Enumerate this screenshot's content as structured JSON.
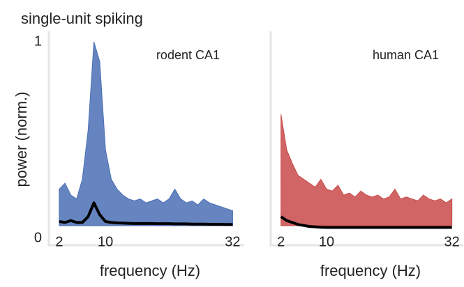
{
  "chart_data": [
    {
      "type": "line",
      "title": "single-unit spiking",
      "ylabel": "power (norm.)",
      "xlabel": "frequency (Hz)",
      "annotation": "rodent CA1",
      "x": [
        2,
        3,
        4,
        5,
        6,
        7,
        8,
        9,
        10,
        11,
        12,
        13,
        14,
        15,
        16,
        17,
        18,
        19,
        20,
        21,
        22,
        23,
        24,
        25,
        26,
        27,
        28,
        29,
        30,
        31,
        32
      ],
      "series": [
        {
          "color": "#4a6fb5",
          "fill": true,
          "values": [
            0.25,
            0.28,
            0.22,
            0.2,
            0.3,
            0.55,
            1.0,
            0.9,
            0.45,
            0.3,
            0.25,
            0.22,
            0.2,
            0.19,
            0.2,
            0.18,
            0.19,
            0.2,
            0.18,
            0.2,
            0.25,
            0.2,
            0.18,
            0.19,
            0.17,
            0.2,
            0.18,
            0.17,
            0.16,
            0.15,
            0.14
          ]
        },
        {
          "color": "#000000",
          "fill": false,
          "linewidth": 4,
          "values": [
            0.085,
            0.08,
            0.09,
            0.08,
            0.08,
            0.11,
            0.18,
            0.12,
            0.085,
            0.08,
            0.078,
            0.077,
            0.076,
            0.075,
            0.075,
            0.075,
            0.075,
            0.074,
            0.074,
            0.074,
            0.073,
            0.073,
            0.073,
            0.072,
            0.072,
            0.072,
            0.071,
            0.071,
            0.071,
            0.07,
            0.07
          ]
        }
      ],
      "xlim": [
        0.2,
        34
      ],
      "ylim": [
        0,
        1
      ],
      "xticks": [
        2,
        10,
        32
      ],
      "yticks": [
        0,
        1
      ]
    },
    {
      "type": "line",
      "xlabel": "frequency (Hz)",
      "annotation": "human CA1",
      "x": [
        2,
        3,
        4,
        5,
        6,
        7,
        8,
        9,
        10,
        11,
        12,
        13,
        14,
        15,
        16,
        17,
        18,
        19,
        20,
        21,
        22,
        23,
        24,
        25,
        26,
        27,
        28,
        29,
        30,
        31,
        32
      ],
      "series": [
        {
          "color": "#c94a4a",
          "fill": true,
          "values": [
            0.63,
            0.45,
            0.38,
            0.32,
            0.3,
            0.28,
            0.26,
            0.3,
            0.25,
            0.24,
            0.27,
            0.22,
            0.23,
            0.21,
            0.24,
            0.22,
            0.21,
            0.22,
            0.2,
            0.21,
            0.25,
            0.2,
            0.21,
            0.2,
            0.19,
            0.22,
            0.2,
            0.19,
            0.2,
            0.18,
            0.2
          ]
        },
        {
          "color": "#000000",
          "fill": false,
          "linewidth": 4,
          "values": [
            0.11,
            0.09,
            0.08,
            0.07,
            0.065,
            0.06,
            0.058,
            0.056,
            0.055,
            0.055,
            0.055,
            0.055,
            0.055,
            0.055,
            0.055,
            0.055,
            0.055,
            0.055,
            0.055,
            0.055,
            0.055,
            0.055,
            0.055,
            0.055,
            0.055,
            0.055,
            0.055,
            0.055,
            0.055,
            0.055,
            0.055
          ]
        }
      ],
      "xlim": [
        0.2,
        34
      ],
      "ylim": [
        0,
        1
      ],
      "xticks": [
        2,
        10,
        32
      ]
    }
  ]
}
